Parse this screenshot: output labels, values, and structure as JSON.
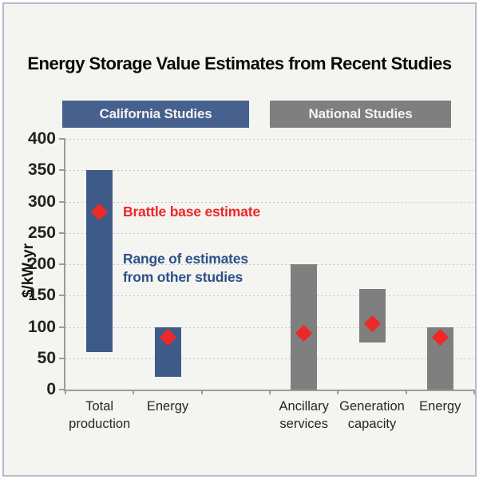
{
  "title": "Energy Storage Value Estimates from Recent Studies",
  "group_headers": [
    {
      "label": "California Studies",
      "color": "#46618e"
    },
    {
      "label": "National Studies",
      "color": "#7f7f7f"
    }
  ],
  "y_axis": {
    "label": "$/kW-yr",
    "ticks": [
      400,
      350,
      300,
      250,
      200,
      150,
      100,
      50,
      0
    ]
  },
  "legend": {
    "base_estimate_label": "Brattle base estimate",
    "range_label": "Range of estimates\nfrom other studies"
  },
  "colors": {
    "california_bar_blue": "#3e5b88",
    "national_bar_gray": "#7f7f7f",
    "marker_red": "#ed2828",
    "annotation_red": "#ed2828",
    "annotation_blue": "#2b5189",
    "header_blue": "#46618e",
    "header_gray": "#7f7f7f",
    "background": "#f4f4f1"
  },
  "chart_data": {
    "type": "bar",
    "subtype": "floating-range-bars-with-point-markers",
    "title": "Energy Storage Value Estimates from Recent Studies",
    "ylabel": "$/kW-yr",
    "ylim": [
      0,
      400
    ],
    "y_tick_step": 50,
    "grid": "horizontal-dotted",
    "marker": {
      "shape": "diamond",
      "color": "#ed2828",
      "meaning": "Brattle base estimate"
    },
    "bar_meaning": "Range of estimates from other studies",
    "groups": [
      {
        "name": "California Studies",
        "color": "#3e5b88",
        "categories": [
          {
            "label_lines": [
              "Total",
              "production"
            ],
            "range_low": 60,
            "range_high": 350,
            "base_estimate": 283
          },
          {
            "label_lines": [
              "Energy"
            ],
            "range_low": 20,
            "range_high": 100,
            "base_estimate": 83
          }
        ]
      },
      {
        "name": "National Studies",
        "color": "#7f7f7f",
        "categories": [
          {
            "label_lines": [
              "Ancillary",
              "services"
            ],
            "range_low": 0,
            "range_high": 200,
            "base_estimate": 90
          },
          {
            "label_lines": [
              "Generation",
              "capacity"
            ],
            "range_low": 75,
            "range_high": 160,
            "base_estimate": 105
          },
          {
            "label_lines": [
              "Energy"
            ],
            "range_low": 0,
            "range_high": 100,
            "base_estimate": 83
          }
        ]
      }
    ]
  }
}
